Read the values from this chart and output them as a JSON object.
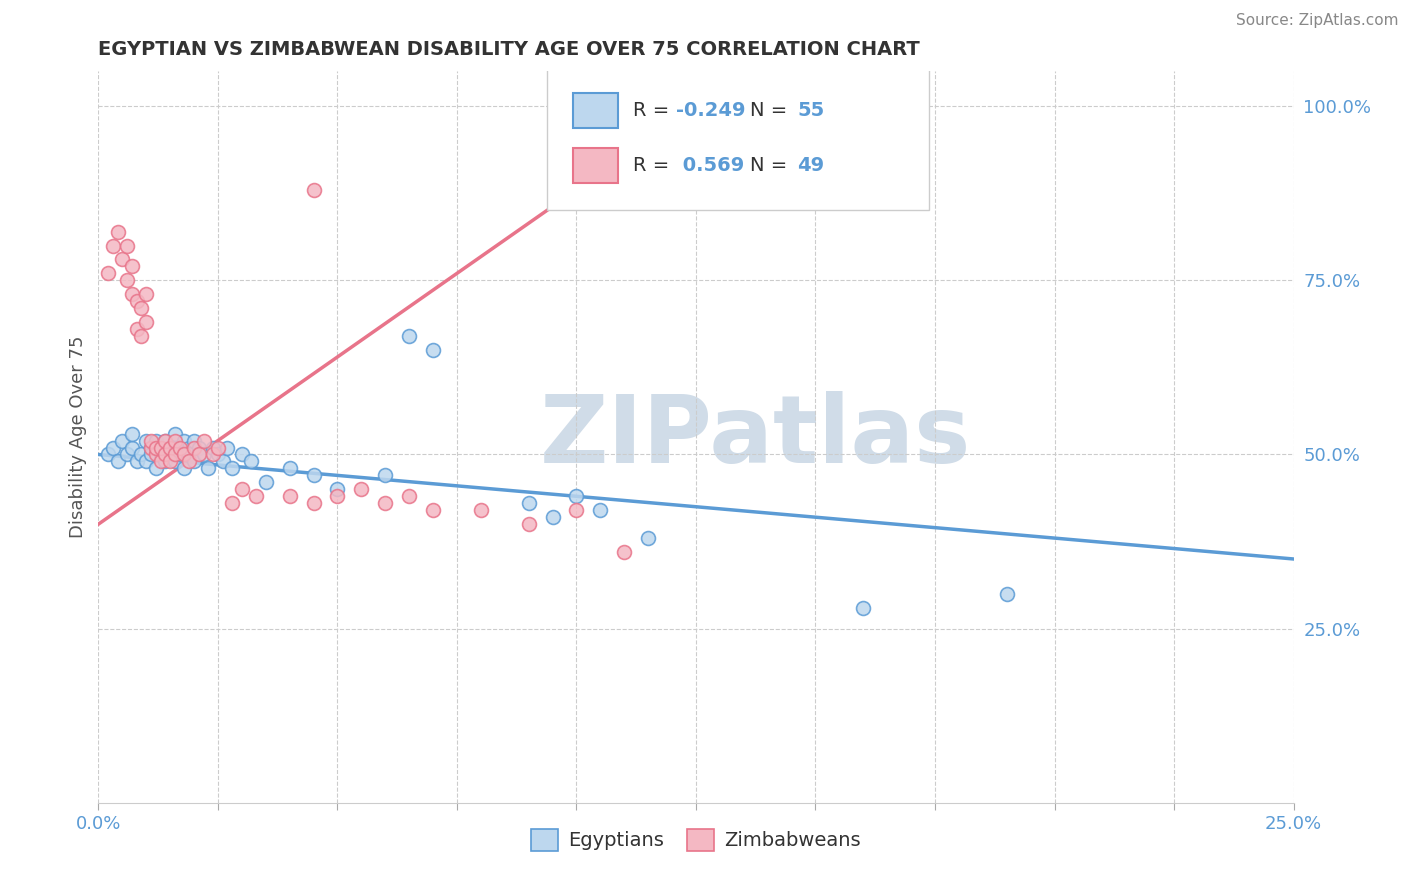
{
  "title": "EGYPTIAN VS ZIMBABWEAN DISABILITY AGE OVER 75 CORRELATION CHART",
  "source": "Source: ZipAtlas.com",
  "ylabel": "Disability Age Over 75",
  "xlim": [
    0.0,
    0.25
  ],
  "ylim": [
    0.0,
    1.05
  ],
  "blue_color": "#5B9BD5",
  "blue_fill": "#BDD7EE",
  "pink_color": "#E8748A",
  "pink_fill": "#F4B8C3",
  "R_blue": -0.249,
  "N_blue": 55,
  "R_pink": 0.569,
  "N_pink": 49,
  "watermark": "ZIPatlas",
  "watermark_color": "#D0DCE8",
  "legend_label_blue": "Egyptians",
  "legend_label_pink": "Zimbabweans",
  "ytick_color": "#5B9BD5",
  "xtick_color": "#5B9BD5",
  "blue_x": [
    0.002,
    0.003,
    0.004,
    0.005,
    0.006,
    0.007,
    0.007,
    0.008,
    0.009,
    0.01,
    0.01,
    0.011,
    0.011,
    0.012,
    0.012,
    0.013,
    0.013,
    0.014,
    0.014,
    0.015,
    0.015,
    0.016,
    0.016,
    0.017,
    0.017,
    0.018,
    0.018,
    0.019,
    0.019,
    0.02,
    0.02,
    0.021,
    0.022,
    0.023,
    0.024,
    0.025,
    0.026,
    0.027,
    0.028,
    0.03,
    0.032,
    0.035,
    0.04,
    0.045,
    0.05,
    0.06,
    0.065,
    0.07,
    0.09,
    0.095,
    0.1,
    0.105,
    0.115,
    0.16,
    0.19
  ],
  "blue_y": [
    0.5,
    0.51,
    0.49,
    0.52,
    0.5,
    0.51,
    0.53,
    0.49,
    0.5,
    0.52,
    0.49,
    0.51,
    0.5,
    0.52,
    0.48,
    0.51,
    0.5,
    0.52,
    0.49,
    0.51,
    0.5,
    0.53,
    0.49,
    0.51,
    0.5,
    0.52,
    0.48,
    0.51,
    0.5,
    0.52,
    0.49,
    0.51,
    0.5,
    0.48,
    0.51,
    0.5,
    0.49,
    0.51,
    0.48,
    0.5,
    0.49,
    0.46,
    0.48,
    0.47,
    0.45,
    0.47,
    0.67,
    0.65,
    0.43,
    0.41,
    0.44,
    0.42,
    0.38,
    0.28,
    0.3
  ],
  "pink_x": [
    0.002,
    0.003,
    0.004,
    0.005,
    0.006,
    0.006,
    0.007,
    0.007,
    0.008,
    0.008,
    0.009,
    0.009,
    0.01,
    0.01,
    0.011,
    0.011,
    0.012,
    0.012,
    0.013,
    0.013,
    0.014,
    0.014,
    0.015,
    0.015,
    0.016,
    0.016,
    0.017,
    0.018,
    0.019,
    0.02,
    0.021,
    0.022,
    0.024,
    0.025,
    0.028,
    0.03,
    0.033,
    0.04,
    0.045,
    0.05,
    0.055,
    0.06,
    0.065,
    0.07,
    0.08,
    0.09,
    0.1,
    0.11,
    0.045
  ],
  "pink_y": [
    0.76,
    0.8,
    0.82,
    0.78,
    0.8,
    0.75,
    0.77,
    0.73,
    0.72,
    0.68,
    0.71,
    0.67,
    0.73,
    0.69,
    0.51,
    0.52,
    0.5,
    0.51,
    0.49,
    0.51,
    0.5,
    0.52,
    0.51,
    0.49,
    0.52,
    0.5,
    0.51,
    0.5,
    0.49,
    0.51,
    0.5,
    0.52,
    0.5,
    0.51,
    0.43,
    0.45,
    0.44,
    0.44,
    0.43,
    0.44,
    0.45,
    0.43,
    0.44,
    0.42,
    0.42,
    0.4,
    0.42,
    0.36,
    0.88
  ]
}
